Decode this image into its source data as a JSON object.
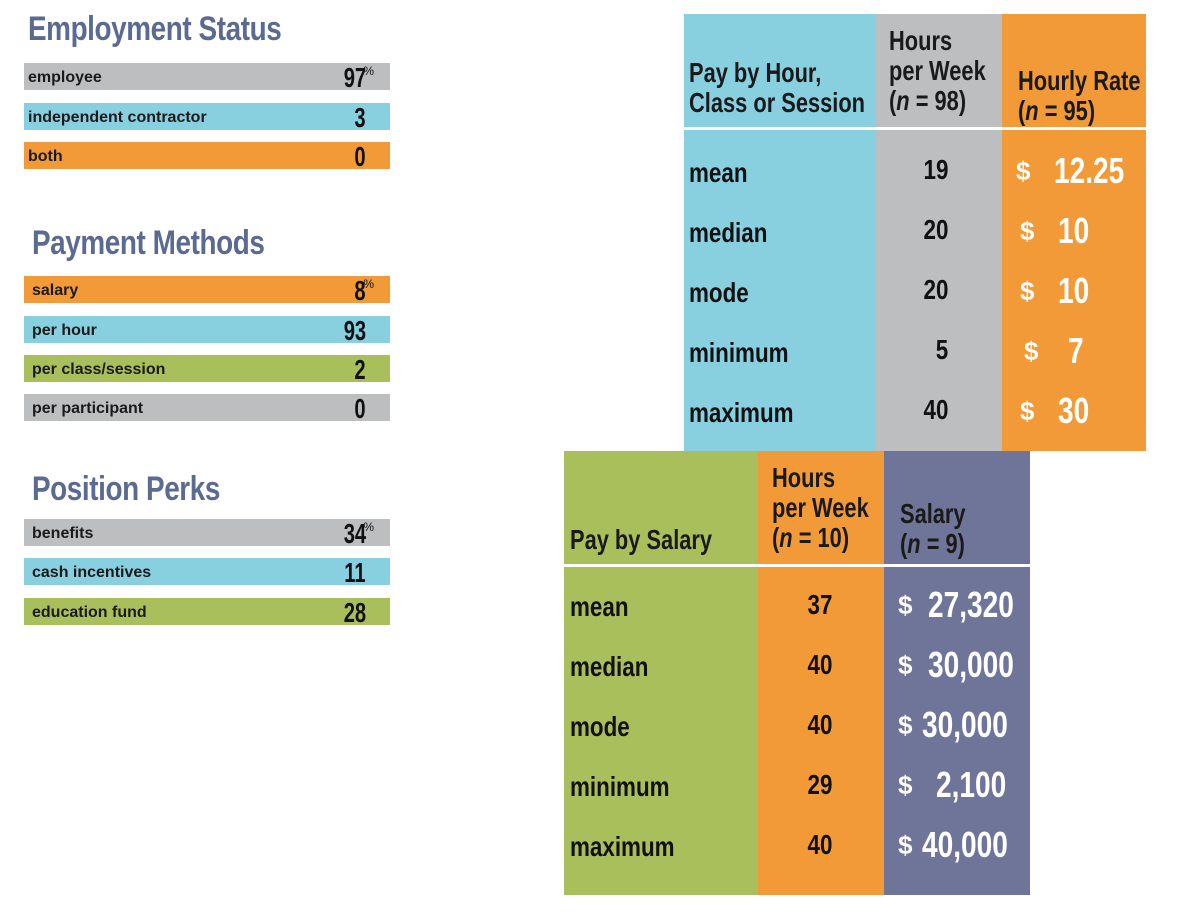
{
  "employment_status": {
    "title": "Employment Status",
    "items": [
      {
        "label": "employee",
        "value": "97",
        "suffix": "%",
        "color": "#bcbec0"
      },
      {
        "label": "independent contractor",
        "value": "3",
        "suffix": "",
        "color": "#88d0df"
      },
      {
        "label": "both",
        "value": "0",
        "suffix": "",
        "color": "#f29a38"
      }
    ]
  },
  "payment_methods": {
    "title": "Payment Methods",
    "items": [
      {
        "label": "salary",
        "value": "8",
        "suffix": "%",
        "color": "#f29a38"
      },
      {
        "label": "per hour",
        "value": "93",
        "suffix": "",
        "color": "#88d0df"
      },
      {
        "label": "per class/session",
        "value": "2",
        "suffix": "",
        "color": "#a9bf5b"
      },
      {
        "label": "per participant",
        "value": "0",
        "suffix": "",
        "color": "#bcbec0"
      }
    ]
  },
  "position_perks": {
    "title": "Position Perks",
    "items": [
      {
        "label": "benefits",
        "value": "34",
        "suffix": "%",
        "color": "#bcbec0"
      },
      {
        "label": "cash incentives",
        "value": "11",
        "suffix": "",
        "color": "#88d0df"
      },
      {
        "label": "education fund",
        "value": "28",
        "suffix": "",
        "color": "#a9bf5b"
      }
    ]
  },
  "hourly_table": {
    "header_label_line1": "Pay by Hour,",
    "header_label_line2": "Class or Session",
    "hours_header_line1": "Hours",
    "hours_header_line2": "per Week",
    "hours_n": "98",
    "rate_header_line1": "Hourly Rate",
    "rate_n": "95",
    "currency": "$",
    "rows": [
      {
        "label": "mean",
        "hours": "19",
        "rate": "12.25"
      },
      {
        "label": "median",
        "hours": "20",
        "rate": "10"
      },
      {
        "label": "mode",
        "hours": "20",
        "rate": "10"
      },
      {
        "label": "minimum",
        "hours": "5",
        "rate": "7"
      },
      {
        "label": "maximum",
        "hours": "40",
        "rate": "30"
      }
    ]
  },
  "salary_table": {
    "header_label": "Pay by Salary",
    "hours_header_line1": "Hours",
    "hours_header_line2": "per Week",
    "hours_n": "10",
    "salary_header_line1": "Salary",
    "salary_n": "9",
    "currency": "$",
    "rows": [
      {
        "label": "mean",
        "hours": "37",
        "salary": "27,320"
      },
      {
        "label": "median",
        "hours": "40",
        "salary": "30,000"
      },
      {
        "label": "mode",
        "hours": "40",
        "salary": "30,000"
      },
      {
        "label": "minimum",
        "hours": "29",
        "salary": "2,100"
      },
      {
        "label": "maximum",
        "hours": "40",
        "salary": "40,000"
      }
    ]
  }
}
